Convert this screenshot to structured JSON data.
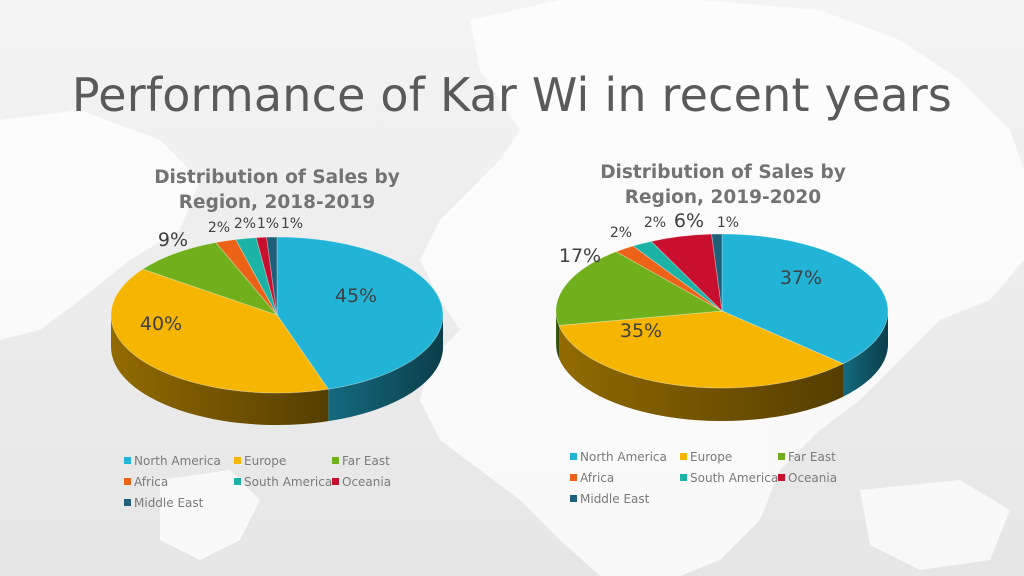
{
  "slide": {
    "title": "Performance of Kar Wi in recent years"
  },
  "colors": {
    "North America": "#22b4d6",
    "Europe": "#f6b500",
    "Far East": "#6fb01c",
    "Africa": "#ec6217",
    "South America": "#1bb3a5",
    "Oceania": "#c8102e",
    "Middle East": "#1e5f7a"
  },
  "chart_data": [
    {
      "type": "pie",
      "title": [
        "Distribution of Sales by",
        "Region, 2018-2019"
      ],
      "categories": [
        "North America",
        "Europe",
        "Far East",
        "Africa",
        "South America",
        "Oceania",
        "Middle East"
      ],
      "values": [
        45,
        40,
        9,
        2,
        2,
        1,
        1
      ],
      "labels": [
        "45%",
        "40%",
        "9%",
        "2%",
        "2%",
        "1%",
        "1%"
      ],
      "legend": "bottom"
    },
    {
      "type": "pie",
      "title": [
        "Distribution of Sales by",
        "Region, 2019-2020"
      ],
      "categories": [
        "North America",
        "Europe",
        "Far East",
        "Africa",
        "South America",
        "Oceania",
        "Middle East"
      ],
      "values": [
        37,
        35,
        17,
        2,
        2,
        6,
        1
      ],
      "labels": [
        "37%",
        "35%",
        "17%",
        "2%",
        "2%",
        "6%",
        "1%"
      ],
      "legend": "bottom"
    }
  ]
}
